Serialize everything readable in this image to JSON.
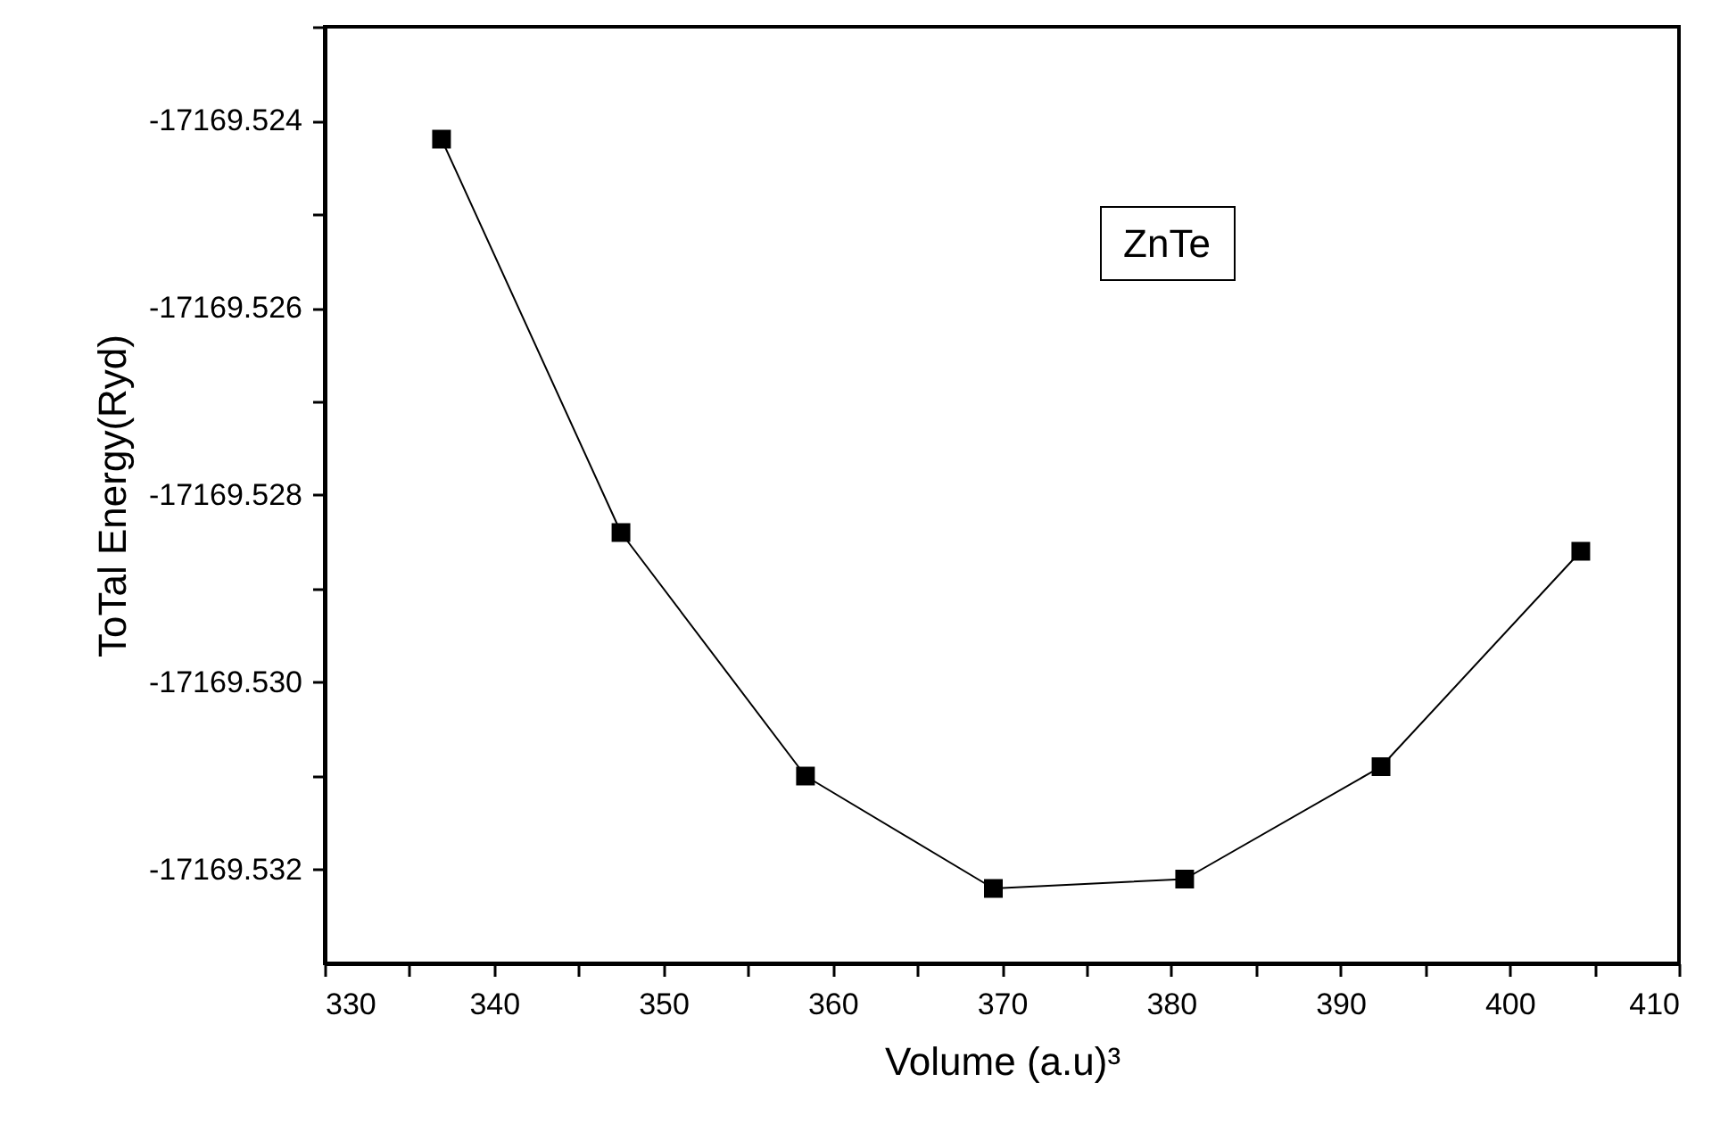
{
  "chart_data": {
    "type": "line",
    "xlabel": "Volume (a.u)³",
    "ylabel": "ToTal Energy(Ryd)",
    "annotations": [
      "ZnTe"
    ],
    "x": [
      336.9,
      347.5,
      358.4,
      369.5,
      380.8,
      392.4,
      404.2
    ],
    "series": [
      {
        "color": "#000000",
        "values": [
          -17169.5242,
          -17169.5284,
          -17169.531,
          -17169.5322,
          -17169.5321,
          -17169.5309,
          -17169.5286
        ]
      }
    ],
    "xlim": [
      330,
      410
    ],
    "xticks": [
      330,
      {
        "value": 335,
        "label": null
      },
      340,
      {
        "value": 345,
        "label": null
      },
      350,
      {
        "value": 355,
        "label": null
      },
      360,
      {
        "value": 365,
        "label": null
      },
      370,
      {
        "value": 375,
        "label": null
      },
      380,
      {
        "value": 385,
        "label": null
      },
      390,
      {
        "value": 395,
        "label": null
      },
      400,
      {
        "value": 405,
        "label": null
      },
      410
    ],
    "ylim": [
      -17169.533,
      -17169.523
    ],
    "yticks": [
      {
        "value": -17169.523,
        "label": null
      },
      {
        "value": -17169.524,
        "label": "-17169.524"
      },
      {
        "value": -17169.525,
        "label": null
      },
      {
        "value": -17169.526,
        "label": "-17169.526"
      },
      {
        "value": -17169.527,
        "label": null
      },
      {
        "value": -17169.528,
        "label": "-17169.528"
      },
      {
        "value": -17169.529,
        "label": null
      },
      {
        "value": -17169.53,
        "label": "-17169.530"
      },
      {
        "value": -17169.531,
        "label": null
      },
      {
        "value": -17169.532,
        "label": "-17169.532"
      }
    ],
    "marker": "square",
    "line_style": "solid",
    "grid": false
  }
}
